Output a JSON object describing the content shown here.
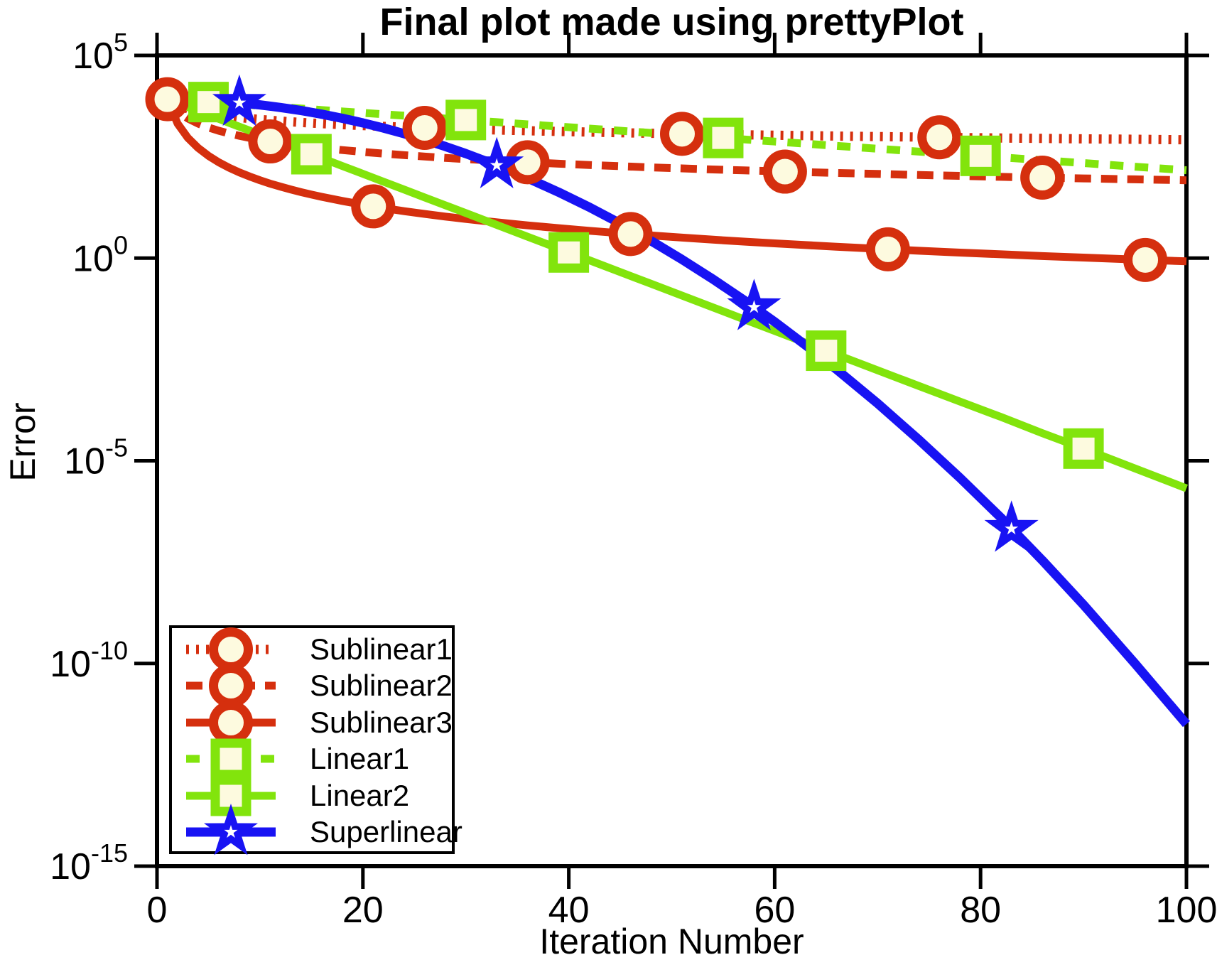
{
  "title": "Final plot made using prettyPlot",
  "x_axis": {
    "label": "Iteration Number",
    "ticks": [
      0,
      20,
      40,
      60,
      80,
      100
    ],
    "range": [
      0,
      100
    ]
  },
  "y_axis": {
    "label": "Error",
    "scale": "log10",
    "tick_exponents": [
      5,
      0,
      -5,
      -10,
      -15
    ],
    "tick_labels": [
      "10^5",
      "10^0",
      "10^-5",
      "10^-10",
      "10^-15"
    ],
    "range": [
      "1e-15",
      "1e5"
    ]
  },
  "colors": {
    "red": "#d52f0e",
    "green": "#82e40c",
    "blue": "#1813f3",
    "marker_face": "#fdfadf",
    "axis": "#000000",
    "background": "#ffffff"
  },
  "legend": {
    "position": "lower-left"
  },
  "chart_data": {
    "type": "line",
    "title": "Final plot made using prettyPlot",
    "xlabel": "Iteration Number",
    "ylabel": "Error",
    "y_scale": "log10",
    "xlim": [
      0,
      100
    ],
    "ylim_exponents": [
      -15,
      5
    ],
    "grid": false,
    "x": [
      1,
      2,
      3,
      4,
      5,
      6,
      7,
      8,
      9,
      10,
      11,
      12,
      13,
      14,
      15,
      16,
      18,
      20,
      22,
      24,
      26,
      28,
      30,
      33,
      36,
      39,
      42,
      45,
      48,
      51,
      54,
      57,
      60,
      63,
      66,
      70,
      74,
      78,
      82,
      86,
      90,
      95,
      100
    ],
    "series": [
      {
        "name": "Sublinear1",
        "color": "#d52f0e",
        "line_style": "dotted",
        "marker": "circle",
        "y": [
          8318,
          5882,
          4802,
          4159,
          3720,
          3396,
          3144,
          2941,
          2773,
          2630,
          2508,
          2401,
          2307,
          2223,
          2148,
          2080,
          1961,
          1860,
          1773,
          1698,
          1631,
          1572,
          1519,
          1448,
          1386,
          1332,
          1283,
          1240,
          1201,
          1165,
          1132,
          1102,
          1074,
          1048,
          1024,
          994,
          967,
          942,
          919,
          897,
          877,
          853,
          832
        ],
        "marker_x": [
          1,
          26,
          51,
          76
        ],
        "marker_y": [
          8318,
          1631,
          1165,
          954
        ]
      },
      {
        "name": "Sublinear2",
        "color": "#d52f0e",
        "line_style": "dashed",
        "marker": "circle",
        "y": [
          8318,
          4159,
          2773,
          2080,
          1664,
          1386,
          1188,
          1040,
          924,
          832,
          756,
          693,
          640,
          594,
          555,
          520,
          462,
          416,
          378,
          347,
          320,
          297,
          277,
          252,
          231,
          213,
          198,
          185,
          173,
          163,
          154,
          146,
          139,
          132,
          126,
          119,
          112,
          107,
          101,
          96.7,
          92.4,
          87.6,
          83.2
        ],
        "marker_x": [
          11,
          36,
          61,
          86
        ],
        "marker_y": [
          756,
          231,
          136,
          96.7
        ]
      },
      {
        "name": "Sublinear3",
        "color": "#d52f0e",
        "line_style": "solid",
        "marker": "circle",
        "y": [
          8318,
          2080,
          924,
          520,
          333,
          231,
          170,
          130,
          103,
          83.2,
          68.7,
          57.8,
          49.2,
          42.4,
          37.0,
          32.5,
          25.7,
          20.8,
          17.2,
          14.4,
          12.3,
          10.6,
          9.24,
          7.64,
          6.42,
          5.47,
          4.72,
          4.11,
          3.61,
          3.2,
          2.85,
          2.56,
          2.31,
          2.1,
          1.91,
          1.7,
          1.52,
          1.37,
          1.24,
          1.12,
          1.03,
          0.922,
          0.832
        ],
        "marker_x": [
          21,
          46,
          71,
          96
        ],
        "marker_y": [
          18.9,
          3.93,
          1.65,
          0.9
        ]
      },
      {
        "name": "Linear1",
        "color": "#82e40c",
        "line_style": "dashed",
        "marker": "square",
        "y": [
          8318,
          7986,
          7667,
          7360,
          7066,
          6783,
          6512,
          6252,
          6002,
          5762,
          5531,
          5310,
          5100,
          4898,
          4700,
          4513,
          4159,
          3835,
          3535,
          3258,
          3003,
          2768,
          2551,
          2258,
          1998,
          1768,
          1565,
          1384,
          1225,
          1084,
          959,
          849,
          751,
          665,
          588,
          500,
          424,
          361,
          306,
          260,
          221,
          180,
          147
        ],
        "marker_x": [
          5,
          30,
          55,
          80
        ],
        "marker_y": [
          7066,
          2551,
          921,
          333
        ]
      },
      {
        "name": "Linear2",
        "color": "#82e40c",
        "line_style": "solid",
        "marker": "square",
        "y": [
          8318,
          6654,
          5323,
          4259,
          3407,
          2726,
          2181,
          1745,
          1396,
          1117,
          893,
          715,
          572,
          457,
          366,
          293,
          187,
          120,
          76.8,
          49.1,
          31.4,
          20.1,
          12.9,
          6.6,
          3.38,
          1.73,
          0.885,
          0.453,
          0.232,
          0.119,
          0.0609,
          0.0312,
          0.016,
          0.00817,
          0.00418,
          0.00171,
          0.0007,
          0.00029,
          0.00012,
          4.8e-05,
          2e-05,
          6.5e-06,
          2.1e-06
        ],
        "marker_x": [
          15,
          40,
          65,
          90
        ],
        "marker_y": [
          366,
          1.38,
          0.0052,
          2e-05
        ]
      },
      {
        "name": "Superlinear",
        "color": "#1813f3",
        "line_style": "solid",
        "marker": "star",
        "y": [
          8147,
          8110,
          8017,
          7852,
          7656,
          7408,
          7096,
          6771,
          6397,
          6014,
          5610,
          5193,
          4775,
          4356,
          3946,
          3556,
          2812,
          2163,
          1618,
          1175,
          828,
          568,
          378,
          195,
          94,
          42.4,
          18.0,
          7.16,
          2.66,
          0.925,
          0.302,
          0.093,
          0.0268,
          0.0071,
          0.0018,
          0.00026,
          3.3e-05,
          3.8e-06,
          3.9e-07,
          3.5e-08,
          2.8e-09,
          1e-10,
          3.2e-12
        ],
        "marker_x": [
          8,
          33,
          58,
          83
        ],
        "marker_y": [
          6771,
          195,
          0.0615,
          2.1e-07
        ]
      }
    ]
  }
}
